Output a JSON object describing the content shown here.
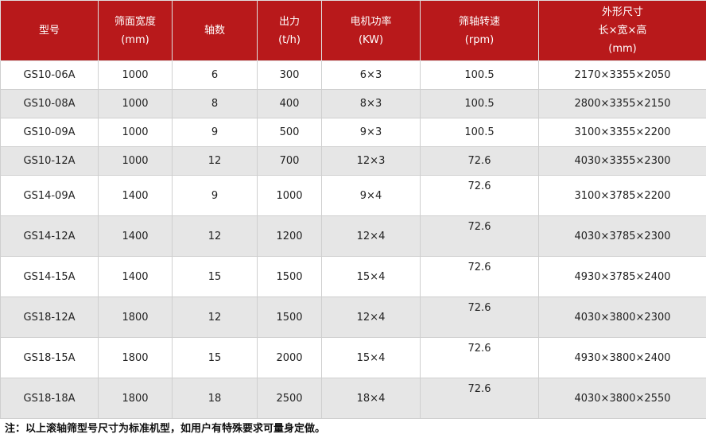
{
  "header": [
    [
      "型号"
    ],
    [
      "筛面宽度",
      "(mm)"
    ],
    [
      "轴数"
    ],
    [
      "出力",
      "(t/h)"
    ],
    [
      "电机功率",
      "(KW)"
    ],
    [
      "筛轴转速",
      "(rpm)"
    ],
    [
      "外形尺寸",
      "长×宽×高",
      "(mm)"
    ]
  ],
  "rows": [
    [
      "GS10-06A",
      "1000",
      "6",
      "300",
      "6×3",
      "100.5",
      "2170×3355×2050"
    ],
    [
      "GS10-08A",
      "1000",
      "8",
      "400",
      "8×3",
      "100.5",
      "2800×3355×2150"
    ],
    [
      "GS10-09A",
      "1000",
      "9",
      "500",
      "9×3",
      "100.5",
      "3100×3355×2200"
    ],
    [
      "GS10-12A",
      "1000",
      "12",
      "700",
      "12×3",
      "72.6",
      "4030×3355×2300"
    ],
    [
      "GS14-09A",
      "1400",
      "9",
      "1000",
      "9×4",
      "72.6",
      "3100×3785×2200"
    ],
    [
      "GS14-12A",
      "1400",
      "12",
      "1200",
      "12×4",
      "72.6",
      "4030×3785×2300"
    ],
    [
      "GS14-15A",
      "1400",
      "15",
      "1500",
      "15×4",
      "72.6",
      "4930×3785×2400"
    ],
    [
      "GS18-12A",
      "1800",
      "12",
      "1500",
      "12×4",
      "72.6",
      "4030×3800×2300"
    ],
    [
      "GS18-15A",
      "1800",
      "15",
      "2000",
      "15×4",
      "72.6",
      "4930×3800×2400"
    ],
    [
      "GS18-18A",
      "1800",
      "18",
      "2500",
      "18×4",
      "72.6",
      "4030×3800×2550"
    ]
  ],
  "note": "注：以上滚轴筛型号尺寸为标准机型，如用户有特殊要求可量身定做。",
  "colors": {
    "header": "#b8191b",
    "alt_row": "#e6e6e6"
  }
}
